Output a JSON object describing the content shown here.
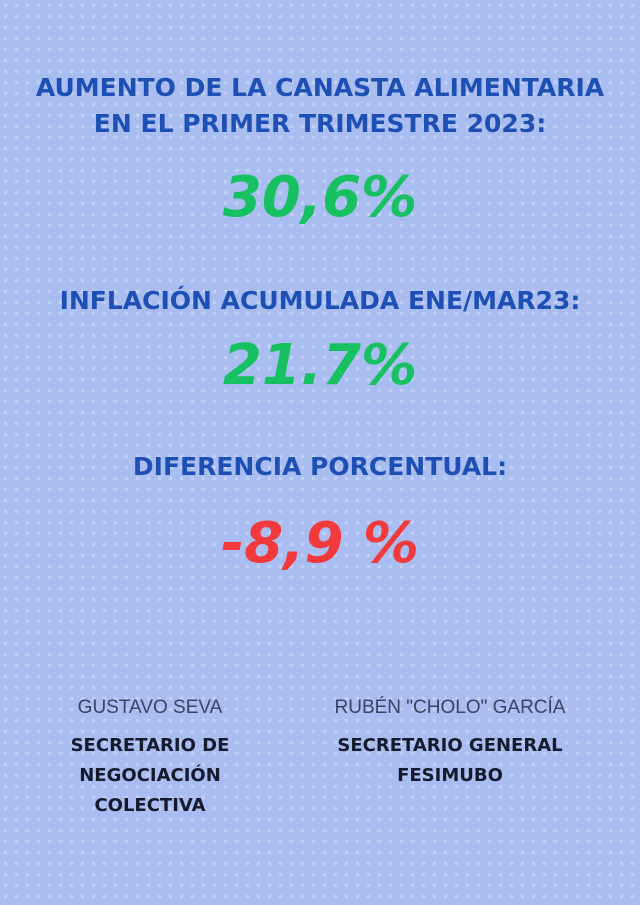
{
  "section1": {
    "heading_line1": "AUMENTO DE LA CANASTA ALIMENTARIA",
    "heading_line2": "EN EL PRIMER TRIMESTRE 2023:",
    "value": "30,6%"
  },
  "section2": {
    "heading": "INFLACIÓN ACUMULADA ENE/MAR23:",
    "value": "21.7%"
  },
  "section3": {
    "heading": "DIFERENCIA PORCENTUAL:",
    "value": "-8,9 %"
  },
  "signatures": [
    {
      "name": "GUSTAVO SEVA",
      "role_lines": [
        "SECRETARIO DE",
        "NEGOCIACIÓN",
        "COLECTIVA"
      ]
    },
    {
      "name": "RUBÉN \"CHOLO\" GARCÍA",
      "role_lines": [
        "SECRETARIO GENERAL",
        "FESIMUBO"
      ]
    }
  ],
  "colors": {
    "background": "#a9bdf0",
    "heading": "#1d4fb4",
    "positive": "#17c061",
    "negative": "#f2393c"
  }
}
